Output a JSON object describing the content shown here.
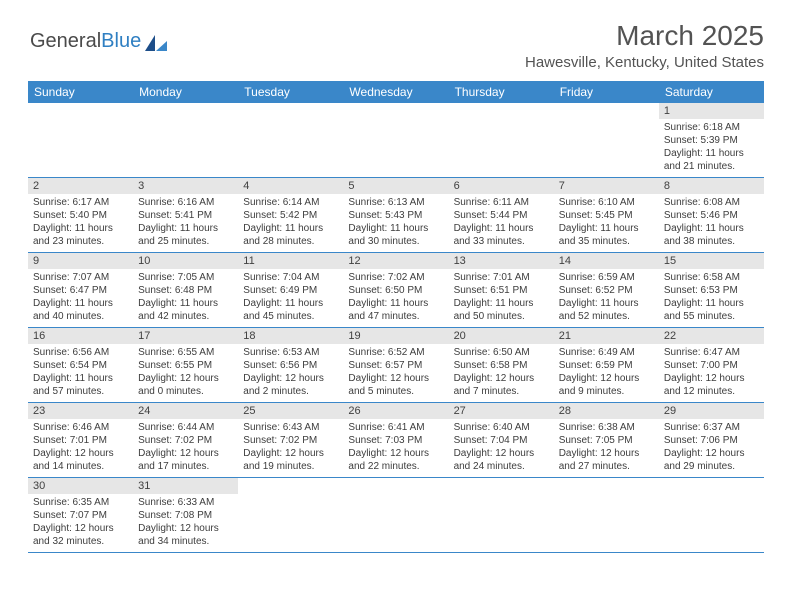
{
  "logo": {
    "part1": "General",
    "part2": "Blue"
  },
  "header": {
    "title": "March 2025",
    "location": "Hawesville, Kentucky, United States"
  },
  "colors": {
    "header_bg": "#3a87c9",
    "header_text": "#ffffff",
    "daynum_bg": "#e6e6e6",
    "text": "#4a4a4a",
    "border": "#3a87c9"
  },
  "weekdays": [
    "Sunday",
    "Monday",
    "Tuesday",
    "Wednesday",
    "Thursday",
    "Friday",
    "Saturday"
  ],
  "weeks": [
    [
      null,
      null,
      null,
      null,
      null,
      null,
      {
        "n": "1",
        "sunrise": "Sunrise: 6:18 AM",
        "sunset": "Sunset: 5:39 PM",
        "daylight": "Daylight: 11 hours and 21 minutes."
      }
    ],
    [
      {
        "n": "2",
        "sunrise": "Sunrise: 6:17 AM",
        "sunset": "Sunset: 5:40 PM",
        "daylight": "Daylight: 11 hours and 23 minutes."
      },
      {
        "n": "3",
        "sunrise": "Sunrise: 6:16 AM",
        "sunset": "Sunset: 5:41 PM",
        "daylight": "Daylight: 11 hours and 25 minutes."
      },
      {
        "n": "4",
        "sunrise": "Sunrise: 6:14 AM",
        "sunset": "Sunset: 5:42 PM",
        "daylight": "Daylight: 11 hours and 28 minutes."
      },
      {
        "n": "5",
        "sunrise": "Sunrise: 6:13 AM",
        "sunset": "Sunset: 5:43 PM",
        "daylight": "Daylight: 11 hours and 30 minutes."
      },
      {
        "n": "6",
        "sunrise": "Sunrise: 6:11 AM",
        "sunset": "Sunset: 5:44 PM",
        "daylight": "Daylight: 11 hours and 33 minutes."
      },
      {
        "n": "7",
        "sunrise": "Sunrise: 6:10 AM",
        "sunset": "Sunset: 5:45 PM",
        "daylight": "Daylight: 11 hours and 35 minutes."
      },
      {
        "n": "8",
        "sunrise": "Sunrise: 6:08 AM",
        "sunset": "Sunset: 5:46 PM",
        "daylight": "Daylight: 11 hours and 38 minutes."
      }
    ],
    [
      {
        "n": "9",
        "sunrise": "Sunrise: 7:07 AM",
        "sunset": "Sunset: 6:47 PM",
        "daylight": "Daylight: 11 hours and 40 minutes."
      },
      {
        "n": "10",
        "sunrise": "Sunrise: 7:05 AM",
        "sunset": "Sunset: 6:48 PM",
        "daylight": "Daylight: 11 hours and 42 minutes."
      },
      {
        "n": "11",
        "sunrise": "Sunrise: 7:04 AM",
        "sunset": "Sunset: 6:49 PM",
        "daylight": "Daylight: 11 hours and 45 minutes."
      },
      {
        "n": "12",
        "sunrise": "Sunrise: 7:02 AM",
        "sunset": "Sunset: 6:50 PM",
        "daylight": "Daylight: 11 hours and 47 minutes."
      },
      {
        "n": "13",
        "sunrise": "Sunrise: 7:01 AM",
        "sunset": "Sunset: 6:51 PM",
        "daylight": "Daylight: 11 hours and 50 minutes."
      },
      {
        "n": "14",
        "sunrise": "Sunrise: 6:59 AM",
        "sunset": "Sunset: 6:52 PM",
        "daylight": "Daylight: 11 hours and 52 minutes."
      },
      {
        "n": "15",
        "sunrise": "Sunrise: 6:58 AM",
        "sunset": "Sunset: 6:53 PM",
        "daylight": "Daylight: 11 hours and 55 minutes."
      }
    ],
    [
      {
        "n": "16",
        "sunrise": "Sunrise: 6:56 AM",
        "sunset": "Sunset: 6:54 PM",
        "daylight": "Daylight: 11 hours and 57 minutes."
      },
      {
        "n": "17",
        "sunrise": "Sunrise: 6:55 AM",
        "sunset": "Sunset: 6:55 PM",
        "daylight": "Daylight: 12 hours and 0 minutes."
      },
      {
        "n": "18",
        "sunrise": "Sunrise: 6:53 AM",
        "sunset": "Sunset: 6:56 PM",
        "daylight": "Daylight: 12 hours and 2 minutes."
      },
      {
        "n": "19",
        "sunrise": "Sunrise: 6:52 AM",
        "sunset": "Sunset: 6:57 PM",
        "daylight": "Daylight: 12 hours and 5 minutes."
      },
      {
        "n": "20",
        "sunrise": "Sunrise: 6:50 AM",
        "sunset": "Sunset: 6:58 PM",
        "daylight": "Daylight: 12 hours and 7 minutes."
      },
      {
        "n": "21",
        "sunrise": "Sunrise: 6:49 AM",
        "sunset": "Sunset: 6:59 PM",
        "daylight": "Daylight: 12 hours and 9 minutes."
      },
      {
        "n": "22",
        "sunrise": "Sunrise: 6:47 AM",
        "sunset": "Sunset: 7:00 PM",
        "daylight": "Daylight: 12 hours and 12 minutes."
      }
    ],
    [
      {
        "n": "23",
        "sunrise": "Sunrise: 6:46 AM",
        "sunset": "Sunset: 7:01 PM",
        "daylight": "Daylight: 12 hours and 14 minutes."
      },
      {
        "n": "24",
        "sunrise": "Sunrise: 6:44 AM",
        "sunset": "Sunset: 7:02 PM",
        "daylight": "Daylight: 12 hours and 17 minutes."
      },
      {
        "n": "25",
        "sunrise": "Sunrise: 6:43 AM",
        "sunset": "Sunset: 7:02 PM",
        "daylight": "Daylight: 12 hours and 19 minutes."
      },
      {
        "n": "26",
        "sunrise": "Sunrise: 6:41 AM",
        "sunset": "Sunset: 7:03 PM",
        "daylight": "Daylight: 12 hours and 22 minutes."
      },
      {
        "n": "27",
        "sunrise": "Sunrise: 6:40 AM",
        "sunset": "Sunset: 7:04 PM",
        "daylight": "Daylight: 12 hours and 24 minutes."
      },
      {
        "n": "28",
        "sunrise": "Sunrise: 6:38 AM",
        "sunset": "Sunset: 7:05 PM",
        "daylight": "Daylight: 12 hours and 27 minutes."
      },
      {
        "n": "29",
        "sunrise": "Sunrise: 6:37 AM",
        "sunset": "Sunset: 7:06 PM",
        "daylight": "Daylight: 12 hours and 29 minutes."
      }
    ],
    [
      {
        "n": "30",
        "sunrise": "Sunrise: 6:35 AM",
        "sunset": "Sunset: 7:07 PM",
        "daylight": "Daylight: 12 hours and 32 minutes."
      },
      {
        "n": "31",
        "sunrise": "Sunrise: 6:33 AM",
        "sunset": "Sunset: 7:08 PM",
        "daylight": "Daylight: 12 hours and 34 minutes."
      },
      null,
      null,
      null,
      null,
      null
    ]
  ]
}
